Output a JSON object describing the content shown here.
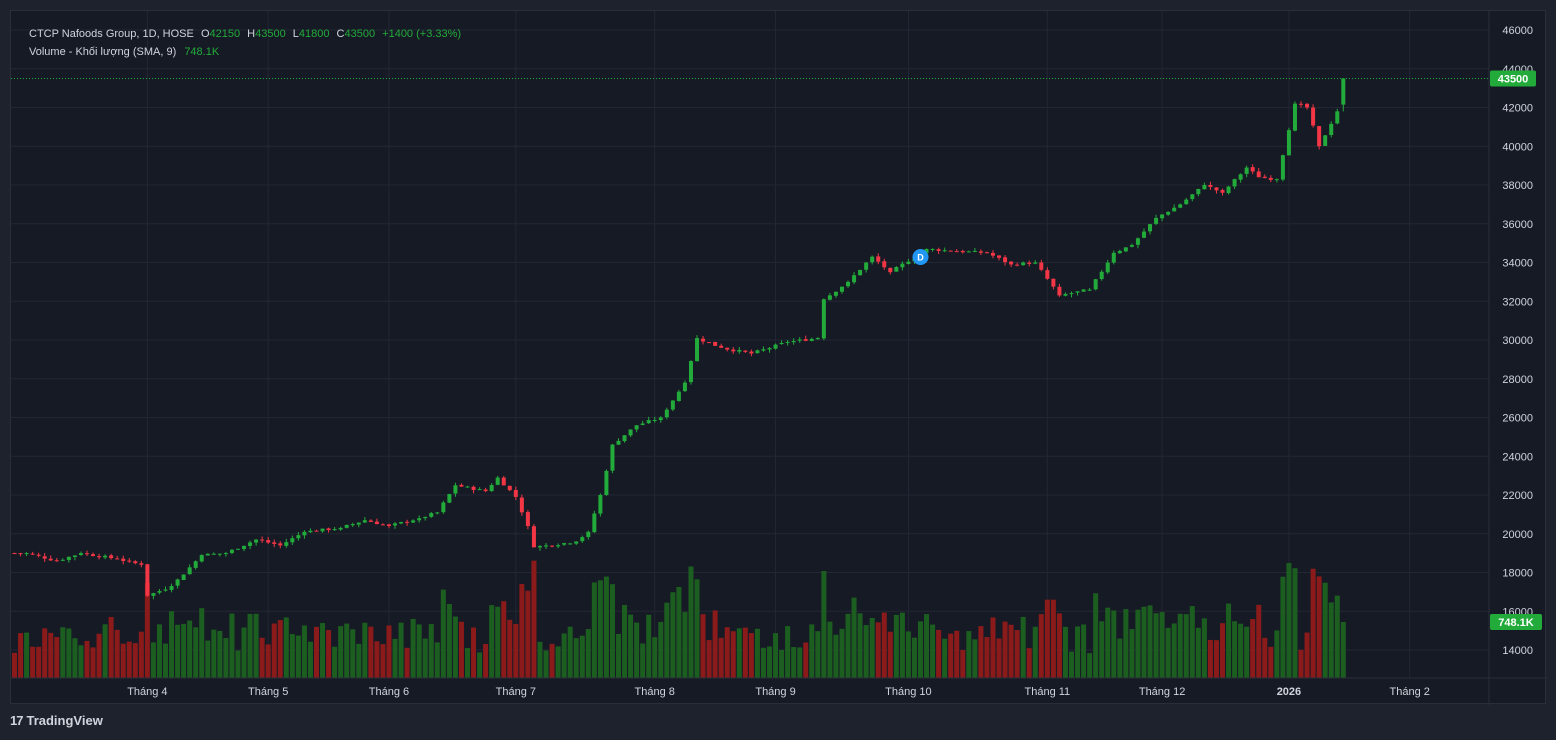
{
  "legend": {
    "symbol": "CTCP Nafoods Group, 1D, HOSE",
    "o_label": "O",
    "o_value": "42150",
    "h_label": "H",
    "h_value": "43500",
    "l_label": "L",
    "l_value": "41800",
    "c_label": "C",
    "c_value": "43500",
    "change": "+1400 (+3.33%)",
    "volume_label": "Volume - Khối lượng (SMA, 9)",
    "volume_value": "748.1K"
  },
  "brand": {
    "name": "TradingView",
    "logo": "tv-logo-icon"
  },
  "colors": {
    "up": "#22ab3a",
    "down": "#f23645",
    "vol_up": "#1b5e20",
    "vol_down": "#8b1a1a",
    "price_badge": "#22ab3a",
    "event_badge": "#2196f3"
  },
  "chart_data": {
    "type": "candlestick",
    "symbol": "CTCP Nafoods Group",
    "interval": "1D",
    "exchange": "HOSE",
    "last_price_label": "43500",
    "volume_last_label": "748.1K",
    "event_marker": "D",
    "y_ticks": [
      14000,
      16000,
      18000,
      20000,
      22000,
      24000,
      26000,
      28000,
      30000,
      32000,
      34000,
      36000,
      38000,
      40000,
      42000,
      44000,
      46000
    ],
    "y_tick_labels": [
      "14000",
      "16000",
      "18000",
      "20000",
      "22000",
      "24000",
      "26000",
      "28000",
      "30000",
      "32000",
      "34000",
      "36000",
      "38000",
      "40000",
      "42000",
      "44000",
      "46000"
    ],
    "x_tick_labels": [
      "Tháng 4",
      "Tháng 5",
      "Tháng 6",
      "Tháng 7",
      "Tháng 8",
      "Tháng 9",
      "Tháng 10",
      "Tháng 11",
      "Tháng 12",
      "2026",
      "Tháng 2"
    ],
    "x_tick_indices": [
      22,
      42,
      62,
      83,
      106,
      126,
      148,
      171,
      190,
      211,
      231
    ],
    "event_index": 150,
    "grid": true,
    "segments": [
      {
        "len": 3,
        "to": 19000
      },
      {
        "len": 5,
        "to": 18600
      },
      {
        "len": 4,
        "to": 19000
      },
      {
        "len": 6,
        "to": 18700
      },
      {
        "len": 4,
        "to": 18400
      },
      {
        "len": 1,
        "to": 16800
      },
      {
        "len": 4,
        "to": 17300
      },
      {
        "len": 5,
        "to": 18900
      },
      {
        "len": 4,
        "to": 19000
      },
      {
        "len": 5,
        "to": 19700
      },
      {
        "len": 4,
        "to": 19400
      },
      {
        "len": 4,
        "to": 20100
      },
      {
        "len": 6,
        "to": 20300
      },
      {
        "len": 4,
        "to": 20700
      },
      {
        "len": 4,
        "to": 20400
      },
      {
        "len": 5,
        "to": 20800
      },
      {
        "len": 3,
        "to": 21100
      },
      {
        "len": 3,
        "to": 22500
      },
      {
        "len": 5,
        "to": 22200
      },
      {
        "len": 2,
        "to": 22900
      },
      {
        "len": 3,
        "to": 21900
      },
      {
        "len": 2,
        "to": 20400
      },
      {
        "len": 1,
        "to": 19300
      },
      {
        "len": 7,
        "to": 19600
      },
      {
        "len": 2,
        "to": 20100
      },
      {
        "len": 2,
        "to": 22000
      },
      {
        "len": 2,
        "to": 24600
      },
      {
        "len": 4,
        "to": 25600
      },
      {
        "len": 4,
        "to": 26000
      },
      {
        "len": 4,
        "to": 27800
      },
      {
        "len": 2,
        "to": 30100
      },
      {
        "len": 4,
        "to": 29600
      },
      {
        "len": 5,
        "to": 29300
      },
      {
        "len": 6,
        "to": 29900
      },
      {
        "len": 5,
        "to": 30100
      },
      {
        "len": 1,
        "to": 32100
      },
      {
        "len": 4,
        "to": 33000
      },
      {
        "len": 4,
        "to": 34300
      },
      {
        "len": 3,
        "to": 33500
      },
      {
        "len": 6,
        "to": 34700
      },
      {
        "len": 4,
        "to": 34600
      },
      {
        "len": 6,
        "to": 34500
      },
      {
        "len": 4,
        "to": 33900
      },
      {
        "len": 4,
        "to": 34000
      },
      {
        "len": 4,
        "to": 32300
      },
      {
        "len": 5,
        "to": 32600
      },
      {
        "len": 4,
        "to": 34500
      },
      {
        "len": 3,
        "to": 34900
      },
      {
        "len": 4,
        "to": 36300
      },
      {
        "len": 4,
        "to": 37000
      },
      {
        "len": 4,
        "to": 38000
      },
      {
        "len": 3,
        "to": 37600
      },
      {
        "len": 4,
        "to": 38900
      },
      {
        "len": 2,
        "to": 38400
      },
      {
        "len": 3,
        "to": 38300
      },
      {
        "len": 3,
        "to": 42200
      },
      {
        "len": 2,
        "to": 42000
      },
      {
        "len": 2,
        "to": 40000
      },
      {
        "len": 3,
        "to": 41800
      },
      {
        "len": 1,
        "to": 43500
      }
    ],
    "start_price": 19000
  }
}
